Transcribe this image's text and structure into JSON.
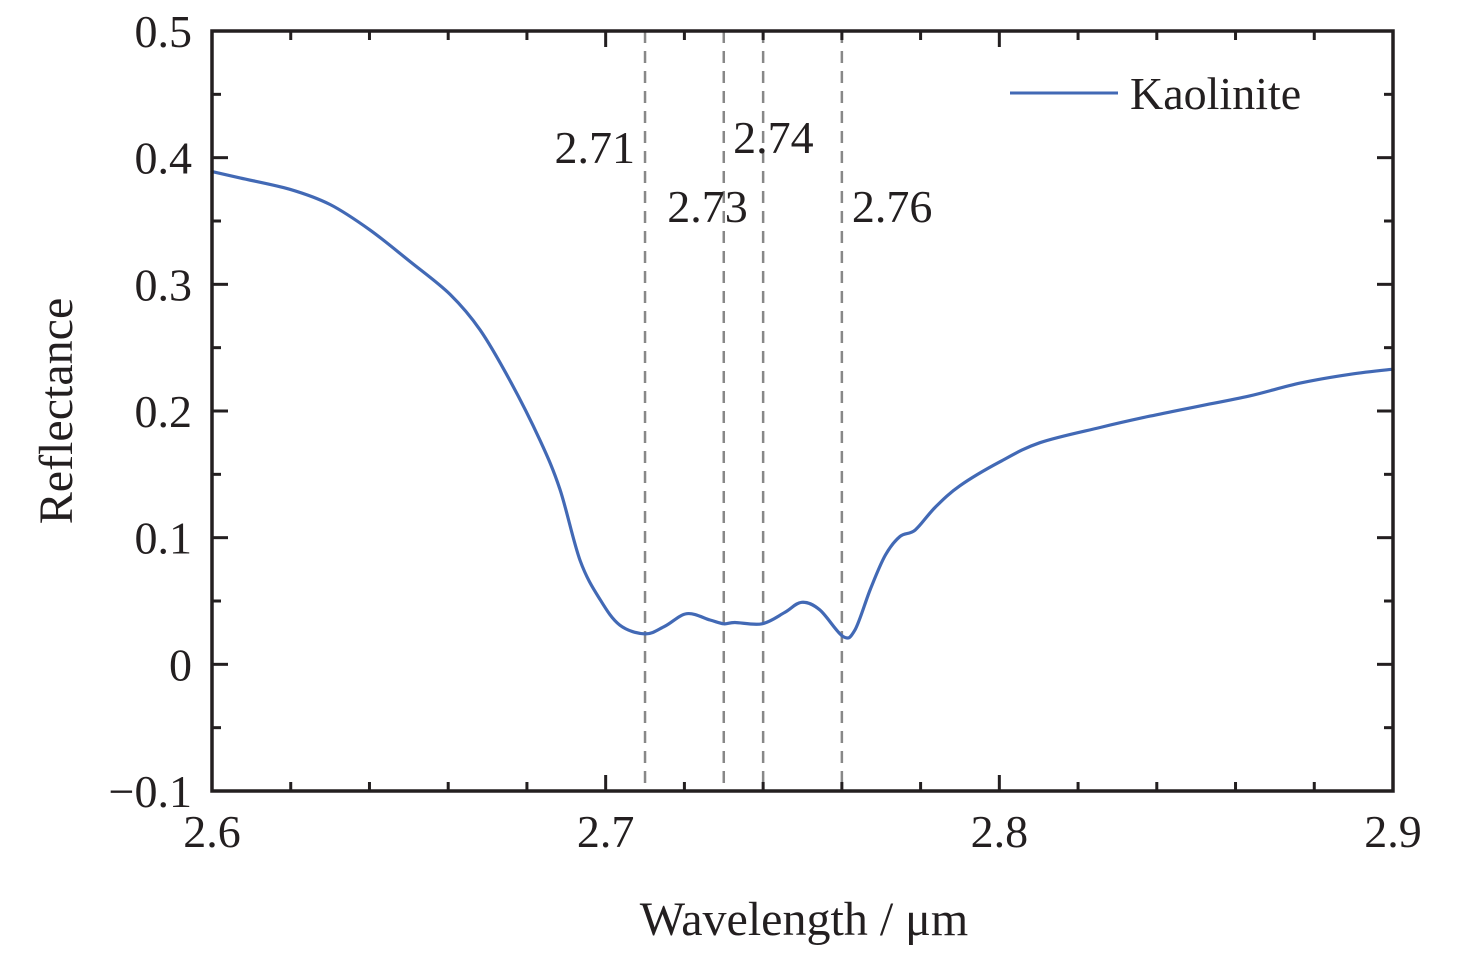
{
  "chart_data": {
    "type": "line",
    "title": "",
    "xlabel": "Wavelength / μm",
    "ylabel": "Reflectance",
    "xlim": [
      2.6,
      2.9
    ],
    "ylim": [
      -0.1,
      0.5
    ],
    "xticks": [
      2.6,
      2.7,
      2.8,
      2.9
    ],
    "xtick_labels": [
      "2.6",
      "2.7",
      "2.8",
      "2.9"
    ],
    "xminor_step": 0.02,
    "yticks": [
      -0.1,
      0,
      0.1,
      0.2,
      0.3,
      0.4,
      0.5
    ],
    "ytick_labels": [
      "−0.1",
      "0",
      "0.1",
      "0.2",
      "0.3",
      "0.4",
      "0.5"
    ],
    "yminor_step": 0.05,
    "grid": false,
    "legend": {
      "position": "top-right",
      "entries": [
        "Kaolinite"
      ]
    },
    "series": [
      {
        "name": "Kaolinite",
        "color": "#4269b5",
        "x": [
          2.6,
          2.6071,
          2.6198,
          2.63,
          2.6401,
          2.6503,
          2.6605,
          2.6681,
          2.6757,
          2.6833,
          2.6884,
          2.6935,
          2.6986,
          2.7036,
          2.71,
          2.715,
          2.7206,
          2.7265,
          2.73,
          2.7328,
          2.7397,
          2.7455,
          2.7498,
          2.7544,
          2.7603,
          2.7633,
          2.7672,
          2.771,
          2.7748,
          2.7786,
          2.7837,
          2.79,
          2.8002,
          2.8103,
          2.8256,
          2.8383,
          2.851,
          2.8637,
          2.8764,
          2.8891,
          2.9
        ],
        "y": [
          0.389,
          0.384,
          0.375,
          0.363,
          0.343,
          0.318,
          0.292,
          0.264,
          0.224,
          0.177,
          0.138,
          0.082,
          0.051,
          0.031,
          0.024,
          0.03,
          0.04,
          0.035,
          0.032,
          0.033,
          0.032,
          0.041,
          0.049,
          0.043,
          0.022,
          0.027,
          0.059,
          0.086,
          0.101,
          0.106,
          0.124,
          0.141,
          0.16,
          0.175,
          0.187,
          0.196,
          0.204,
          0.212,
          0.222,
          0.229,
          0.233
        ]
      }
    ],
    "reference_lines": [
      {
        "x": 2.71,
        "label": "2.71",
        "style": "dashed",
        "color": "#888888"
      },
      {
        "x": 2.73,
        "label": "2.73",
        "style": "dashed",
        "color": "#888888"
      },
      {
        "x": 2.74,
        "label": "2.74",
        "style": "dashed",
        "color": "#888888"
      },
      {
        "x": 2.76,
        "label": "2.76",
        "style": "dashed",
        "color": "#888888"
      }
    ],
    "colors": {
      "axis": "#231f20",
      "text": "#231f20"
    }
  }
}
